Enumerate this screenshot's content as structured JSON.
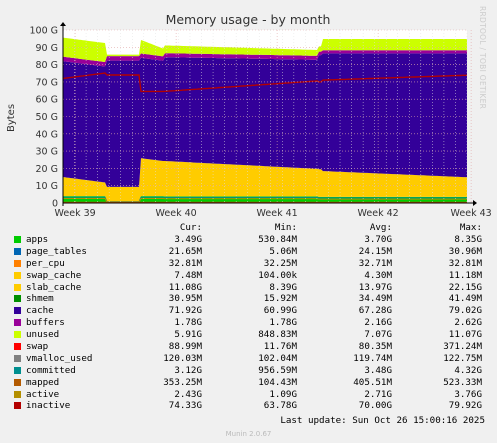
{
  "chart_data": {
    "type": "area",
    "title": "Memory usage - by month",
    "ylabel": "Bytes",
    "ylim": [
      0,
      100
    ],
    "y_unit": "G",
    "yticks": [
      "0",
      "10 G",
      "20 G",
      "30 G",
      "40 G",
      "50 G",
      "60 G",
      "70 G",
      "80 G",
      "90 G",
      "100 G"
    ],
    "x_ticks": [
      "Week 39",
      "Week 40",
      "Week 41",
      "Week 42",
      "Week 43"
    ],
    "grid": true,
    "legend_headers": [
      "Cur:",
      "Min:",
      "Avg:",
      "Max:"
    ],
    "series": [
      {
        "name": "apps",
        "color": "#00cc00",
        "cur": "3.49G",
        "min": "530.84M",
        "avg": "3.70G",
        "max": "8.35G"
      },
      {
        "name": "page_tables",
        "color": "#0066b3",
        "cur": "21.65M",
        "min": "5.06M",
        "avg": "24.15M",
        "max": "30.96M"
      },
      {
        "name": "per_cpu",
        "color": "#ff8000",
        "cur": "32.81M",
        "min": "32.25M",
        "avg": "32.71M",
        "max": "32.81M"
      },
      {
        "name": "swap_cache",
        "color": "#ffcc00",
        "cur": "7.48M",
        "min": "104.00k",
        "avg": "4.30M",
        "max": "11.18M"
      },
      {
        "name": "slab_cache",
        "color": "#ffcc00",
        "cur": "11.08G",
        "min": "8.39G",
        "avg": "13.97G",
        "max": "22.15G"
      },
      {
        "name": "shmem",
        "color": "#008f00",
        "cur": "30.95M",
        "min": "15.92M",
        "avg": "34.49M",
        "max": "41.49M"
      },
      {
        "name": "cache",
        "color": "#330099",
        "cur": "71.92G",
        "min": "60.99G",
        "avg": "67.28G",
        "max": "79.02G"
      },
      {
        "name": "buffers",
        "color": "#990099",
        "cur": "1.78G",
        "min": "1.78G",
        "avg": "2.16G",
        "max": "2.62G"
      },
      {
        "name": "unused",
        "color": "#ccff00",
        "cur": "5.91G",
        "min": "848.83M",
        "avg": "7.07G",
        "max": "11.07G"
      },
      {
        "name": "swap",
        "color": "#ff0000",
        "cur": "88.99M",
        "min": "11.76M",
        "avg": "80.35M",
        "max": "371.24M"
      },
      {
        "name": "vmalloc_used",
        "color": "#808080",
        "cur": "120.03M",
        "min": "102.04M",
        "avg": "119.74M",
        "max": "122.75M"
      },
      {
        "name": "committed",
        "color": "#008f8f",
        "cur": "3.12G",
        "min": "956.59M",
        "avg": "3.48G",
        "max": "4.32G"
      },
      {
        "name": "mapped",
        "color": "#b35a00",
        "cur": "353.25M",
        "min": "104.43M",
        "avg": "405.51M",
        "max": "523.33M"
      },
      {
        "name": "active",
        "color": "#b38f00",
        "cur": "2.43G",
        "min": "1.09G",
        "avg": "2.71G",
        "max": "3.76G"
      },
      {
        "name": "inactive",
        "color": "#b30000",
        "cur": "74.33G",
        "min": "63.78G",
        "avg": "70.00G",
        "max": "79.92G"
      }
    ]
  },
  "footer": {
    "last_update": "Last update: Sun Oct 26 15:00:16 2025",
    "generator": "Munin 2.0.67",
    "side_text": "RRDTOOL / TOBI OETIKER"
  }
}
